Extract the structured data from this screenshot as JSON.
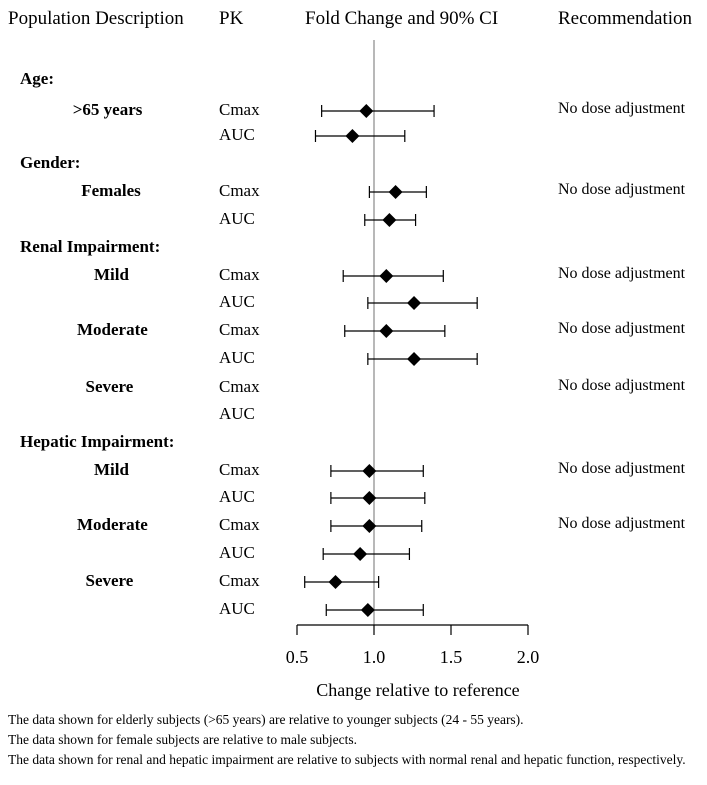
{
  "headers": {
    "population": "Population Description",
    "pk": "PK",
    "fold": "Fold Change and 90% CI",
    "recommendation": "Recommendation"
  },
  "footnotes": [
    "The data shown for elderly subjects (>65 years) are relative to younger subjects (24 - 55 years).",
    "The data shown for female subjects are relative to male subjects.",
    "The data shown for renal and hepatic impairment are relative to subjects with normal renal and hepatic function, respectively."
  ],
  "chart_data": {
    "type": "scatter",
    "subtype": "forest-plot",
    "title": "Fold Change and 90% CI",
    "xlabel": "Change relative to reference",
    "xlim": [
      0.5,
      2.0
    ],
    "xticks": [
      "0.5",
      "1.0",
      "1.5",
      "2.0"
    ],
    "reference_line": 1.0,
    "rows": [
      {
        "label": "Age:",
        "kind": "group"
      },
      {
        "label": ">65 years",
        "kind": "subgroup",
        "pk": "Cmax",
        "est": 0.95,
        "lo": 0.66,
        "hi": 1.39,
        "rec": "No dose adjustment"
      },
      {
        "label": "",
        "kind": "pk",
        "pk": "AUC",
        "est": 0.86,
        "lo": 0.62,
        "hi": 1.2
      },
      {
        "label": "Gender:",
        "kind": "group"
      },
      {
        "label": "Females",
        "kind": "subgroup",
        "pk": "Cmax",
        "est": 1.14,
        "lo": 0.97,
        "hi": 1.34,
        "rec": "No dose adjustment"
      },
      {
        "label": "",
        "kind": "pk",
        "pk": "AUC",
        "est": 1.1,
        "lo": 0.94,
        "hi": 1.27
      },
      {
        "label": "Renal Impairment:",
        "kind": "group"
      },
      {
        "label": "Mild",
        "kind": "subgroup",
        "pk": "Cmax",
        "est": 1.08,
        "lo": 0.8,
        "hi": 1.45,
        "rec": "No dose adjustment"
      },
      {
        "label": "",
        "kind": "pk",
        "pk": "AUC",
        "est": 1.26,
        "lo": 0.96,
        "hi": 1.67
      },
      {
        "label": "Moderate",
        "kind": "subgroup",
        "pk": "Cmax",
        "est": 1.08,
        "lo": 0.81,
        "hi": 1.46,
        "rec": "No dose adjustment"
      },
      {
        "label": "",
        "kind": "pk",
        "pk": "AUC",
        "est": 1.26,
        "lo": 0.96,
        "hi": 1.67
      },
      {
        "label": "Severe",
        "kind": "subgroup",
        "pk": "Cmax",
        "rec": "No dose adjustment"
      },
      {
        "label": "",
        "kind": "pk",
        "pk": "AUC"
      },
      {
        "label": "Hepatic Impairment:",
        "kind": "group"
      },
      {
        "label": "Mild",
        "kind": "subgroup",
        "pk": "Cmax",
        "est": 0.97,
        "lo": 0.72,
        "hi": 1.32,
        "rec": "No dose adjustment"
      },
      {
        "label": "",
        "kind": "pk",
        "pk": "AUC",
        "est": 0.97,
        "lo": 0.72,
        "hi": 1.33
      },
      {
        "label": "Moderate",
        "kind": "subgroup",
        "pk": "Cmax",
        "est": 0.97,
        "lo": 0.72,
        "hi": 1.31,
        "rec": "No dose adjustment"
      },
      {
        "label": "",
        "kind": "pk",
        "pk": "AUC",
        "est": 0.91,
        "lo": 0.67,
        "hi": 1.23
      },
      {
        "label": "Severe",
        "kind": "subgroup",
        "pk": "Cmax",
        "est": 0.75,
        "lo": 0.55,
        "hi": 1.03
      },
      {
        "label": "",
        "kind": "pk",
        "pk": "AUC",
        "est": 0.96,
        "lo": 0.69,
        "hi": 1.32
      }
    ]
  }
}
